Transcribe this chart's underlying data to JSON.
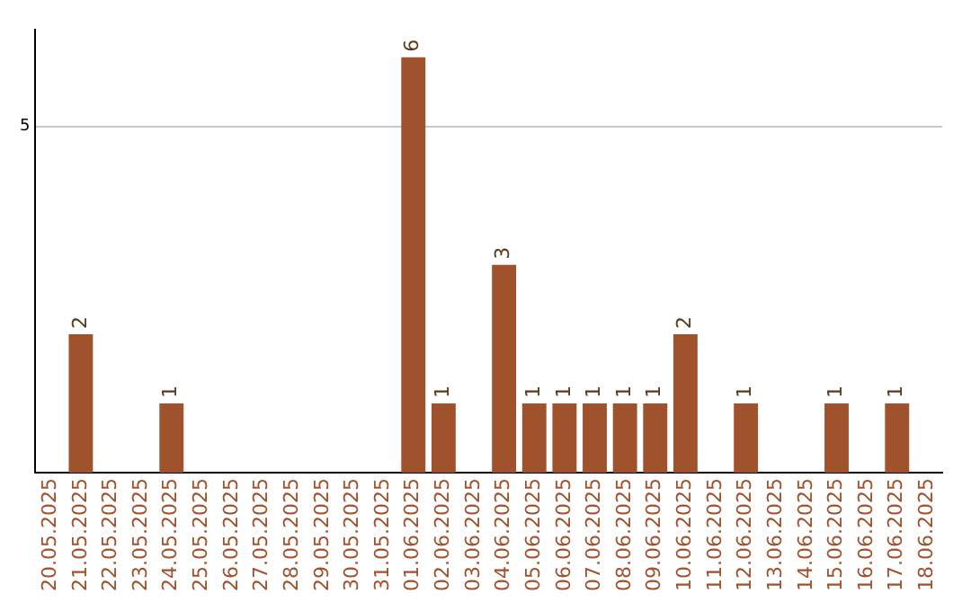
{
  "chart_data": {
    "type": "bar",
    "categories": [
      "20.05.2025",
      "21.05.2025",
      "22.05.2025",
      "23.05.2025",
      "24.05.2025",
      "25.05.2025",
      "26.05.2025",
      "27.05.2025",
      "28.05.2025",
      "29.05.2025",
      "30.05.2025",
      "31.05.2025",
      "01.06.2025",
      "02.06.2025",
      "03.06.2025",
      "04.06.2025",
      "05.06.2025",
      "06.06.2025",
      "07.06.2025",
      "08.06.2025",
      "09.06.2025",
      "10.06.2025",
      "11.06.2025",
      "12.06.2025",
      "13.06.2025",
      "14.06.2025",
      "15.06.2025",
      "16.06.2025",
      "17.06.2025",
      "18.06.2025"
    ],
    "values": [
      0,
      2,
      0,
      0,
      1,
      0,
      0,
      0,
      0,
      0,
      0,
      0,
      6,
      1,
      0,
      3,
      1,
      1,
      1,
      1,
      1,
      2,
      0,
      1,
      0,
      0,
      1,
      0,
      1,
      0
    ],
    "value_labels": [
      null,
      "2",
      null,
      null,
      "1",
      null,
      null,
      null,
      null,
      null,
      null,
      null,
      "6",
      "1",
      null,
      "3",
      "1",
      "1",
      "1",
      "1",
      "1",
      "2",
      null,
      "1",
      null,
      null,
      "1",
      null,
      "1",
      null
    ],
    "color": "#a0522d",
    "ylim": [
      0,
      6.4
    ],
    "yticks": [
      5
    ],
    "grid": "y",
    "legend": false
  }
}
